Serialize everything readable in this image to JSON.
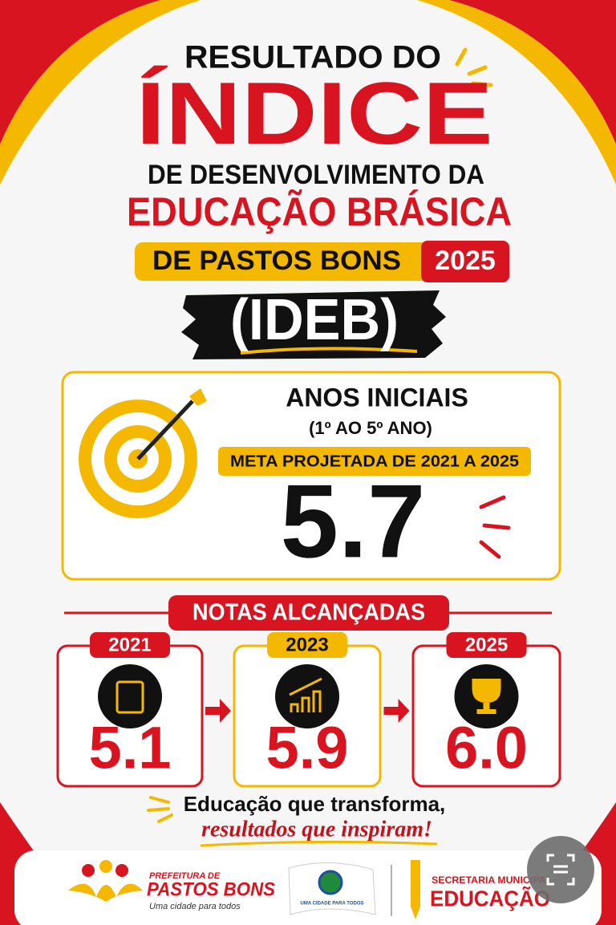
{
  "header": {
    "line1": "RESULTADO DO",
    "line2": "ÍNDICE",
    "line3": "DE DESENVOLVIMENTO DA",
    "line4": "EDUCAÇÃO BRÁSICA",
    "place": "DE PASTOS BONS",
    "year": "2025",
    "acronym": "(IDEB)"
  },
  "target": {
    "title": "ANOS INICIAIS",
    "subtitle": "(1º AO 5º ANO)",
    "label": "META PROJETADA DE 2021 A 2025",
    "value": "5.7"
  },
  "results": {
    "title": "NOTAS ALCANÇADAS",
    "items": [
      {
        "year": "2021",
        "score": "5.1"
      },
      {
        "year": "2023",
        "score": "5.9"
      },
      {
        "year": "2025",
        "score": "6.0"
      }
    ]
  },
  "slogan": {
    "line1": "Educação que transforma,",
    "line2": "resultados que inspiram!"
  },
  "footer": {
    "prefeitura_small": "PREFEITURA DE",
    "prefeitura_name": "PASTOS BONS",
    "prefeitura_tagline": "Uma cidade para todos",
    "flag_text": "UMA CIDADE PARA TODOS",
    "secretaria_small": "SECRETARIA MUNICIPAL",
    "secretaria_name": "EDUCAÇÃO"
  }
}
